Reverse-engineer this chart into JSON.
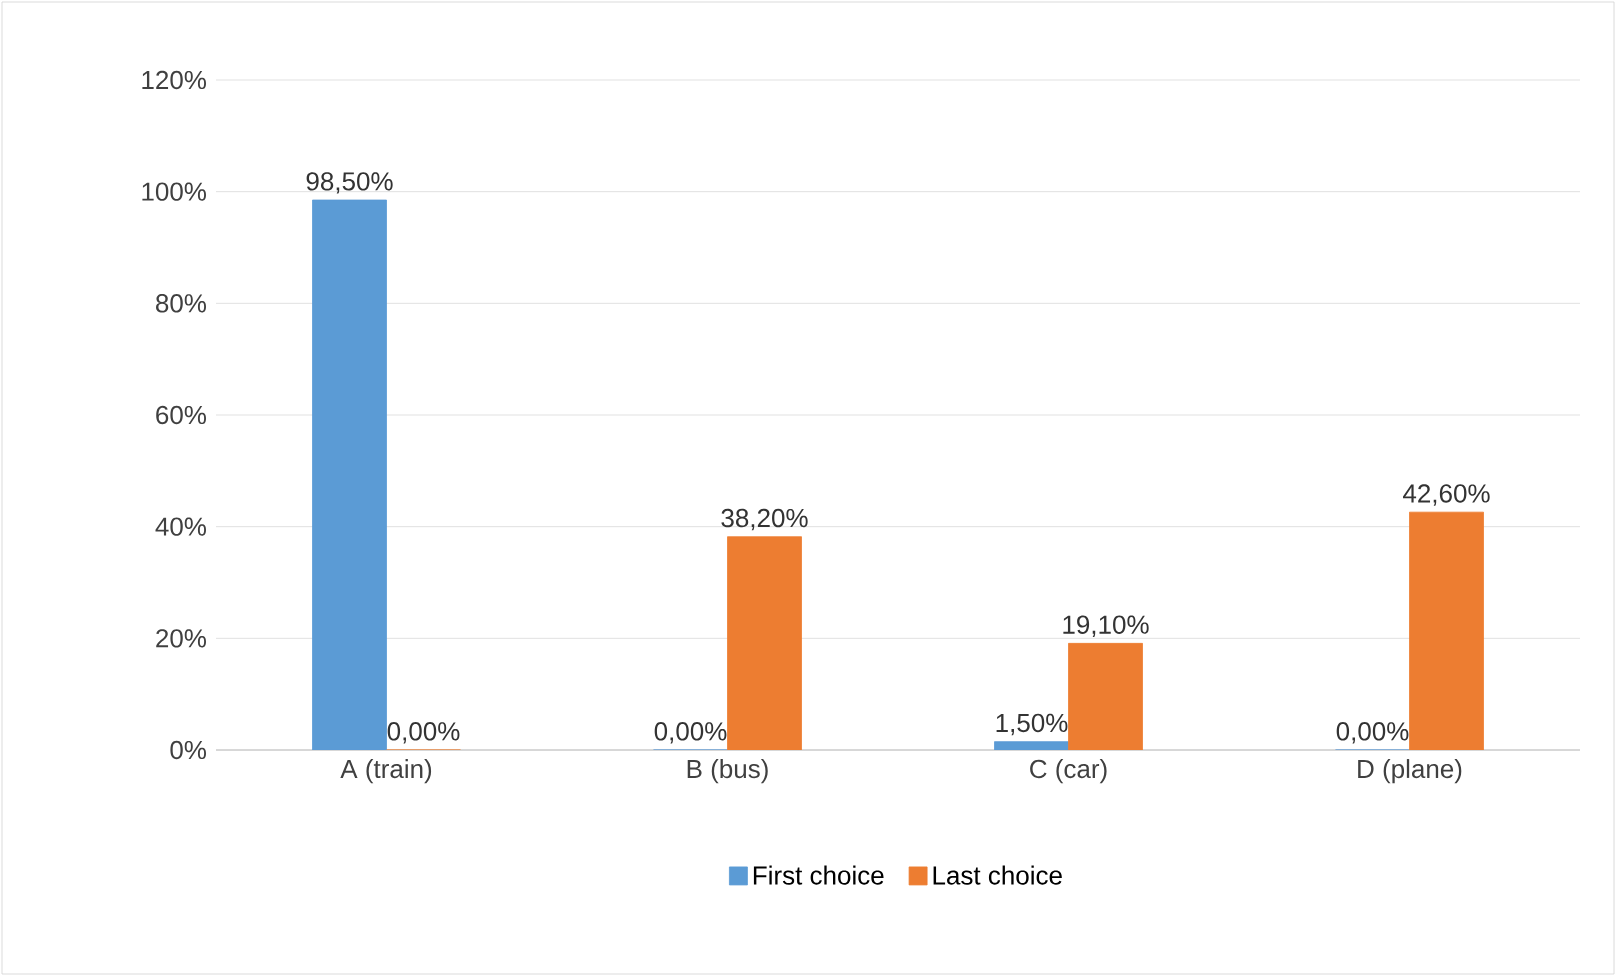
{
  "chart_data": {
    "type": "bar",
    "categories": [
      "A (train)",
      "B (bus)",
      "C (car)",
      "D (plane)"
    ],
    "series": [
      {
        "name": "First choice",
        "color": "#5b9bd5",
        "values": [
          98.5,
          0,
          1.5,
          0
        ],
        "value_labels": [
          "98,50%",
          "0,00%",
          "1,50%",
          "0,00%"
        ]
      },
      {
        "name": "Last choice",
        "color": "#ed7d31",
        "values": [
          0,
          38.2,
          19.1,
          42.6
        ],
        "value_labels": [
          "0,00%",
          "38,20%",
          "19,10%",
          "42,60%"
        ]
      }
    ],
    "ylim": [
      0,
      120
    ],
    "yticks": [
      {
        "value": 0,
        "label": "0%"
      },
      {
        "value": 20,
        "label": "20%"
      },
      {
        "value": 40,
        "label": "40%"
      },
      {
        "value": 60,
        "label": "60%"
      },
      {
        "value": 80,
        "label": "80%"
      },
      {
        "value": 100,
        "label": "100%"
      },
      {
        "value": 120,
        "label": "120%"
      }
    ],
    "grid": "y",
    "legend": "bottom"
  }
}
